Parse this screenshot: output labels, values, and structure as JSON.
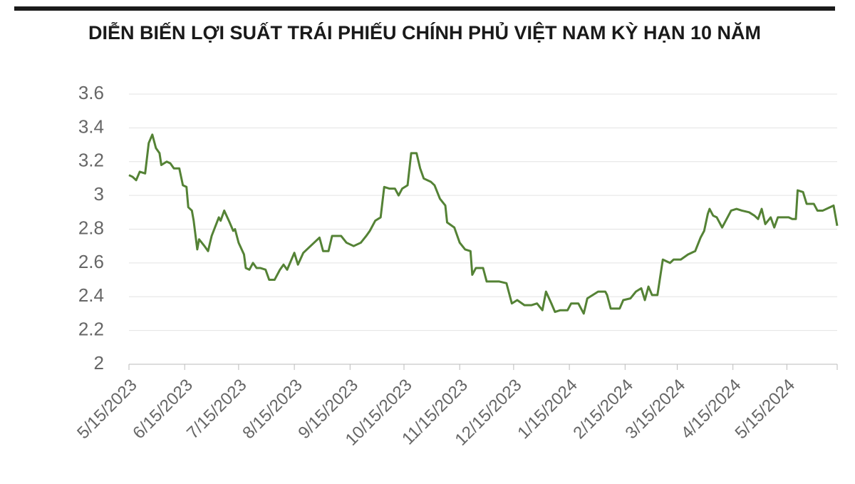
{
  "chart_data": {
    "type": "line",
    "title": "DIỄN BIẾN LỢI SUẤT TRÁI PHIẾU CHÍNH PHỦ VIỆT NAM KỲ HẠN 10 NĂM",
    "x": [
      "2023-05-15",
      "2023-05-17",
      "2023-05-19",
      "2023-05-21",
      "2023-05-24",
      "2023-05-26",
      "2023-05-28",
      "2023-05-30",
      "2023-06-01",
      "2023-06-02",
      "2023-06-05",
      "2023-06-07",
      "2023-06-09",
      "2023-06-12",
      "2023-06-14",
      "2023-06-16",
      "2023-06-17",
      "2023-06-19",
      "2023-06-20",
      "2023-06-22",
      "2023-06-23",
      "2023-06-26",
      "2023-06-28",
      "2023-06-30",
      "2023-07-04",
      "2023-07-05",
      "2023-07-07",
      "2023-07-10",
      "2023-07-12",
      "2023-07-13",
      "2023-07-15",
      "2023-07-18",
      "2023-07-19",
      "2023-07-21",
      "2023-07-23",
      "2023-07-25",
      "2023-07-27",
      "2023-07-30",
      "2023-08-01",
      "2023-08-04",
      "2023-08-07",
      "2023-08-09",
      "2023-08-11",
      "2023-08-15",
      "2023-08-17",
      "2023-08-20",
      "2023-08-23",
      "2023-08-26",
      "2023-08-29",
      "2023-08-31",
      "2023-09-03",
      "2023-09-05",
      "2023-09-10",
      "2023-09-13",
      "2023-09-17",
      "2023-09-21",
      "2023-09-24",
      "2023-09-26",
      "2023-09-29",
      "2023-10-02",
      "2023-10-04",
      "2023-10-07",
      "2023-10-10",
      "2023-10-12",
      "2023-10-14",
      "2023-10-17",
      "2023-10-19",
      "2023-10-22",
      "2023-10-24",
      "2023-10-26",
      "2023-10-30",
      "2023-11-01",
      "2023-11-04",
      "2023-11-07",
      "2023-11-08",
      "2023-11-12",
      "2023-11-15",
      "2023-11-18",
      "2023-11-21",
      "2023-11-22",
      "2023-11-24",
      "2023-11-28",
      "2023-11-30",
      "2023-12-03",
      "2023-12-05",
      "2023-12-07",
      "2023-12-11",
      "2023-12-14",
      "2023-12-17",
      "2023-12-21",
      "2023-12-25",
      "2023-12-28",
      "2023-12-31",
      "2024-01-02",
      "2024-01-05",
      "2024-01-07",
      "2024-01-10",
      "2024-01-14",
      "2024-01-16",
      "2024-01-20",
      "2024-01-23",
      "2024-01-25",
      "2024-01-28",
      "2024-01-31",
      "2024-02-04",
      "2024-02-05",
      "2024-02-07",
      "2024-02-12",
      "2024-02-14",
      "2024-02-18",
      "2024-02-21",
      "2024-02-24",
      "2024-02-26",
      "2024-02-28",
      "2024-03-01",
      "2024-03-04",
      "2024-03-07",
      "2024-03-11",
      "2024-03-13",
      "2024-03-17",
      "2024-03-21",
      "2024-03-25",
      "2024-03-28",
      "2024-03-30",
      "2024-04-01",
      "2024-04-02",
      "2024-04-04",
      "2024-04-06",
      "2024-04-09",
      "2024-04-12",
      "2024-04-14",
      "2024-04-17",
      "2024-04-20",
      "2024-04-24",
      "2024-04-27",
      "2024-04-29",
      "2024-05-01",
      "2024-05-03",
      "2024-05-06",
      "2024-05-08",
      "2024-05-10",
      "2024-05-12",
      "2024-05-16",
      "2024-05-18",
      "2024-05-20",
      "2024-05-21",
      "2024-05-24",
      "2024-05-26",
      "2024-05-30",
      "2024-06-01",
      "2024-06-04",
      "2024-06-08",
      "2024-06-10",
      "2024-06-12"
    ],
    "values": [
      3.12,
      3.11,
      3.09,
      3.14,
      3.13,
      3.31,
      3.36,
      3.28,
      3.25,
      3.18,
      3.2,
      3.19,
      3.16,
      3.16,
      3.06,
      3.05,
      2.93,
      2.91,
      2.85,
      2.68,
      2.74,
      2.7,
      2.67,
      2.76,
      2.87,
      2.85,
      2.91,
      2.84,
      2.79,
      2.8,
      2.72,
      2.65,
      2.57,
      2.56,
      2.6,
      2.57,
      2.57,
      2.56,
      2.5,
      2.5,
      2.56,
      2.59,
      2.56,
      2.66,
      2.59,
      2.66,
      2.69,
      2.72,
      2.75,
      2.67,
      2.67,
      2.76,
      2.76,
      2.72,
      2.7,
      2.72,
      2.76,
      2.79,
      2.85,
      2.87,
      3.05,
      3.04,
      3.04,
      3.0,
      3.04,
      3.06,
      3.25,
      3.25,
      3.16,
      3.1,
      3.08,
      3.06,
      2.98,
      2.94,
      2.84,
      2.81,
      2.72,
      2.68,
      2.67,
      2.53,
      2.57,
      2.57,
      2.49,
      2.49,
      2.49,
      2.49,
      2.48,
      2.36,
      2.38,
      2.35,
      2.35,
      2.36,
      2.32,
      2.43,
      2.36,
      2.31,
      2.32,
      2.32,
      2.36,
      2.36,
      2.3,
      2.39,
      2.41,
      2.43,
      2.43,
      2.41,
      2.33,
      2.33,
      2.38,
      2.39,
      2.43,
      2.45,
      2.38,
      2.46,
      2.41,
      2.41,
      2.62,
      2.6,
      2.62,
      2.62,
      2.65,
      2.67,
      2.75,
      2.79,
      2.89,
      2.92,
      2.88,
      2.87,
      2.81,
      2.87,
      2.91,
      2.92,
      2.91,
      2.9,
      2.88,
      2.86,
      2.92,
      2.83,
      2.87,
      2.81,
      2.87,
      2.87,
      2.87,
      2.86,
      2.86,
      3.03,
      3.02,
      2.95,
      2.95,
      2.91,
      2.91,
      2.93,
      2.94,
      2.82
    ],
    "color": "#548235",
    "xlim": [
      "2023-05-15",
      "2024-06-12"
    ],
    "xticks": [
      {
        "value": "2023-05-15",
        "label": "5/15/2023"
      },
      {
        "value": "2023-06-15",
        "label": "6/15/2023"
      },
      {
        "value": "2023-07-15",
        "label": "7/15/2023"
      },
      {
        "value": "2023-08-15",
        "label": "8/15/2023"
      },
      {
        "value": "2023-09-15",
        "label": "9/15/2023"
      },
      {
        "value": "2023-10-15",
        "label": "10/15/2023"
      },
      {
        "value": "2023-11-15",
        "label": "11/15/2023"
      },
      {
        "value": "2023-12-15",
        "label": "12/15/2023"
      },
      {
        "value": "2024-01-15",
        "label": "1/15/2024"
      },
      {
        "value": "2024-02-15",
        "label": "2/15/2024"
      },
      {
        "value": "2024-03-15",
        "label": "3/15/2024"
      },
      {
        "value": "2024-04-15",
        "label": "4/15/2024"
      },
      {
        "value": "2024-05-15",
        "label": "5/15/2024"
      }
    ],
    "ylim": [
      2,
      3.6
    ],
    "yticks": [
      2,
      2.2,
      2.4,
      2.6,
      2.8,
      3,
      3.2,
      3.4,
      3.6
    ],
    "grid": true
  }
}
